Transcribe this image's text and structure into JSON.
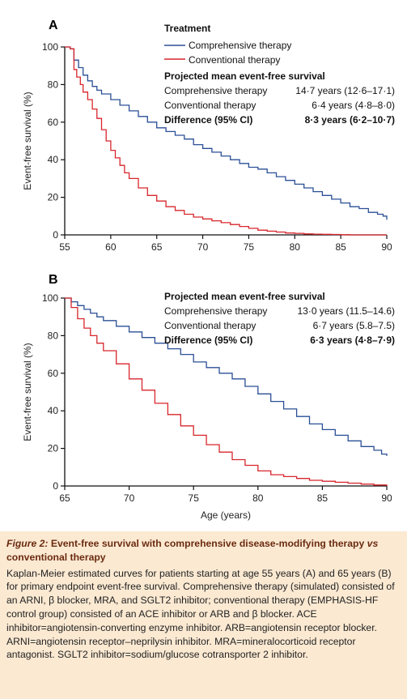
{
  "chart_data": [
    {
      "panel": "A",
      "type": "line",
      "xlim": [
        55,
        90
      ],
      "ylim": [
        0,
        100
      ],
      "xticks": [
        55,
        60,
        65,
        70,
        75,
        80,
        85,
        90
      ],
      "yticks": [
        0,
        20,
        40,
        60,
        80,
        100
      ],
      "ylabel": "Event-free survival (%)",
      "xlabel": "",
      "legend_title": "Treatment",
      "series": [
        {
          "name": "Comprehensive therapy",
          "color": "#2a4f96",
          "x": [
            55,
            55.6,
            56,
            56.5,
            57,
            57.5,
            58,
            58.5,
            59,
            60,
            61,
            62,
            63,
            64,
            65,
            66,
            67,
            68,
            69,
            70,
            71,
            72,
            73,
            74,
            75,
            76,
            77,
            78,
            79,
            80,
            81,
            82,
            83,
            84,
            85,
            86,
            87,
            88,
            89,
            89.6,
            90
          ],
          "y": [
            100,
            99,
            93,
            89,
            85,
            82,
            79,
            77,
            75,
            72,
            69,
            66,
            63,
            60,
            57,
            55,
            53,
            51,
            48,
            46,
            44,
            42,
            40,
            38,
            36,
            35,
            33,
            31,
            29,
            27,
            25,
            23,
            21,
            19,
            17,
            15,
            14,
            12,
            11,
            10,
            8
          ]
        },
        {
          "name": "Conventional therapy",
          "color": "#d8262c",
          "x": [
            55,
            55.6,
            56,
            56.3,
            56.7,
            57,
            57.5,
            58,
            58.5,
            59,
            59.5,
            60,
            60.5,
            61,
            61.5,
            62,
            63,
            64,
            65,
            66,
            67,
            68,
            69,
            70,
            71,
            72,
            73,
            74,
            75,
            76,
            77,
            78,
            79,
            80,
            81,
            82,
            83,
            84,
            85,
            86,
            87,
            88,
            89,
            90
          ],
          "y": [
            100,
            99,
            88,
            84,
            80,
            76,
            72,
            67,
            62,
            56,
            50,
            45,
            41,
            37,
            33,
            30,
            25,
            21,
            18,
            15,
            13,
            11,
            9.5,
            8.5,
            7.5,
            6.5,
            5.5,
            4.5,
            3.5,
            2.5,
            2,
            1.5,
            1,
            0.8,
            0.5,
            0.4,
            0.3,
            0.2,
            0.1,
            0,
            0,
            0,
            0,
            0
          ]
        }
      ]
    },
    {
      "panel": "B",
      "type": "line",
      "xlim": [
        65,
        90
      ],
      "ylim": [
        0,
        100
      ],
      "xticks": [
        65,
        70,
        75,
        80,
        85,
        90
      ],
      "yticks": [
        0,
        20,
        40,
        60,
        80,
        100
      ],
      "ylabel": "Event-free survival (%)",
      "xlabel": "Age (years)",
      "series": [
        {
          "name": "Comprehensive therapy",
          "color": "#2a4f96",
          "x": [
            65,
            65.5,
            66,
            66.5,
            67,
            67.5,
            68,
            69,
            70,
            71,
            72,
            73,
            74,
            75,
            76,
            77,
            78,
            79,
            80,
            81,
            82,
            83,
            84,
            85,
            86,
            87,
            88,
            89,
            89.6,
            90
          ],
          "y": [
            100,
            98,
            96,
            94,
            92,
            90,
            88,
            85,
            82,
            79,
            76,
            73,
            70,
            66,
            63,
            60,
            57,
            53,
            49,
            45,
            41,
            37,
            33,
            30,
            27,
            24,
            21,
            19,
            17,
            16
          ]
        },
        {
          "name": "Conventional therapy",
          "color": "#d8262c",
          "x": [
            65,
            65.5,
            66,
            66.5,
            67,
            67.5,
            68,
            69,
            70,
            71,
            72,
            73,
            74,
            75,
            76,
            77,
            78,
            79,
            80,
            81,
            82,
            83,
            84,
            85,
            86,
            87,
            88,
            89,
            90
          ],
          "y": [
            100,
            95,
            89,
            84,
            80,
            76,
            72,
            65,
            57,
            51,
            44,
            38,
            32,
            27,
            22,
            18,
            14,
            11,
            8,
            6,
            5,
            4,
            3,
            2.5,
            2,
            1.5,
            1,
            0.5,
            0
          ]
        }
      ]
    }
  ],
  "panelA": {
    "letter": "A",
    "legend_title": "Treatment",
    "legend_items": [
      "Comprehensive therapy",
      "Conventional therapy"
    ],
    "projection_title": "Projected mean event-free survival",
    "rows": [
      {
        "label": "Comprehensive therapy",
        "value": "14·7 years (12·6–17·1)",
        "bold": false
      },
      {
        "label": "Conventional therapy",
        "value": "6·4 years (4·8–8·0)",
        "bold": false
      },
      {
        "label": "Difference (95% CI)",
        "value": "8·3 years (6·2–10·7)",
        "bold": true
      }
    ]
  },
  "panelB": {
    "letter": "B",
    "projection_title": "Projected mean event-free survival",
    "rows": [
      {
        "label": "Comprehensive therapy",
        "value": "13·0 years (11.5–14.6)",
        "bold": false
      },
      {
        "label": "Conventional therapy",
        "value": "6·7 years (5.8–7.5)",
        "bold": false
      },
      {
        "label": "Difference (95% CI)",
        "value": "6·3 years (4·8–7·9)",
        "bold": true
      }
    ]
  },
  "caption": {
    "figure_label": "Figure 2:",
    "title_main": " Event-free survival with comprehensive disease-modifying therapy ",
    "title_vs": "vs",
    "title_end": " conventional therapy",
    "body": "Kaplan-Meier estimated curves for patients starting at age 55 years (A) and 65 years (B) for primary endpoint event-free survival. Comprehensive therapy (simulated) consisted of an ARNI, β blocker, MRA, and SGLT2 inhibitor; conventional therapy (EMPHASIS-HF control group) consisted of an ACE inhibitor or ARB and β blocker. ACE inhibitor=angiotensin-converting enzyme inhibitor. ARB=angiotensin receptor blocker. ARNI=angiotensin receptor–neprilysin inhibitor. MRA=mineralocorticoid receptor antagonist. SGLT2 inhibitor=sodium/glucose cotransporter 2 inhibitor.",
    "background": "#fbe9d2",
    "title_color": "#6b2b10"
  }
}
